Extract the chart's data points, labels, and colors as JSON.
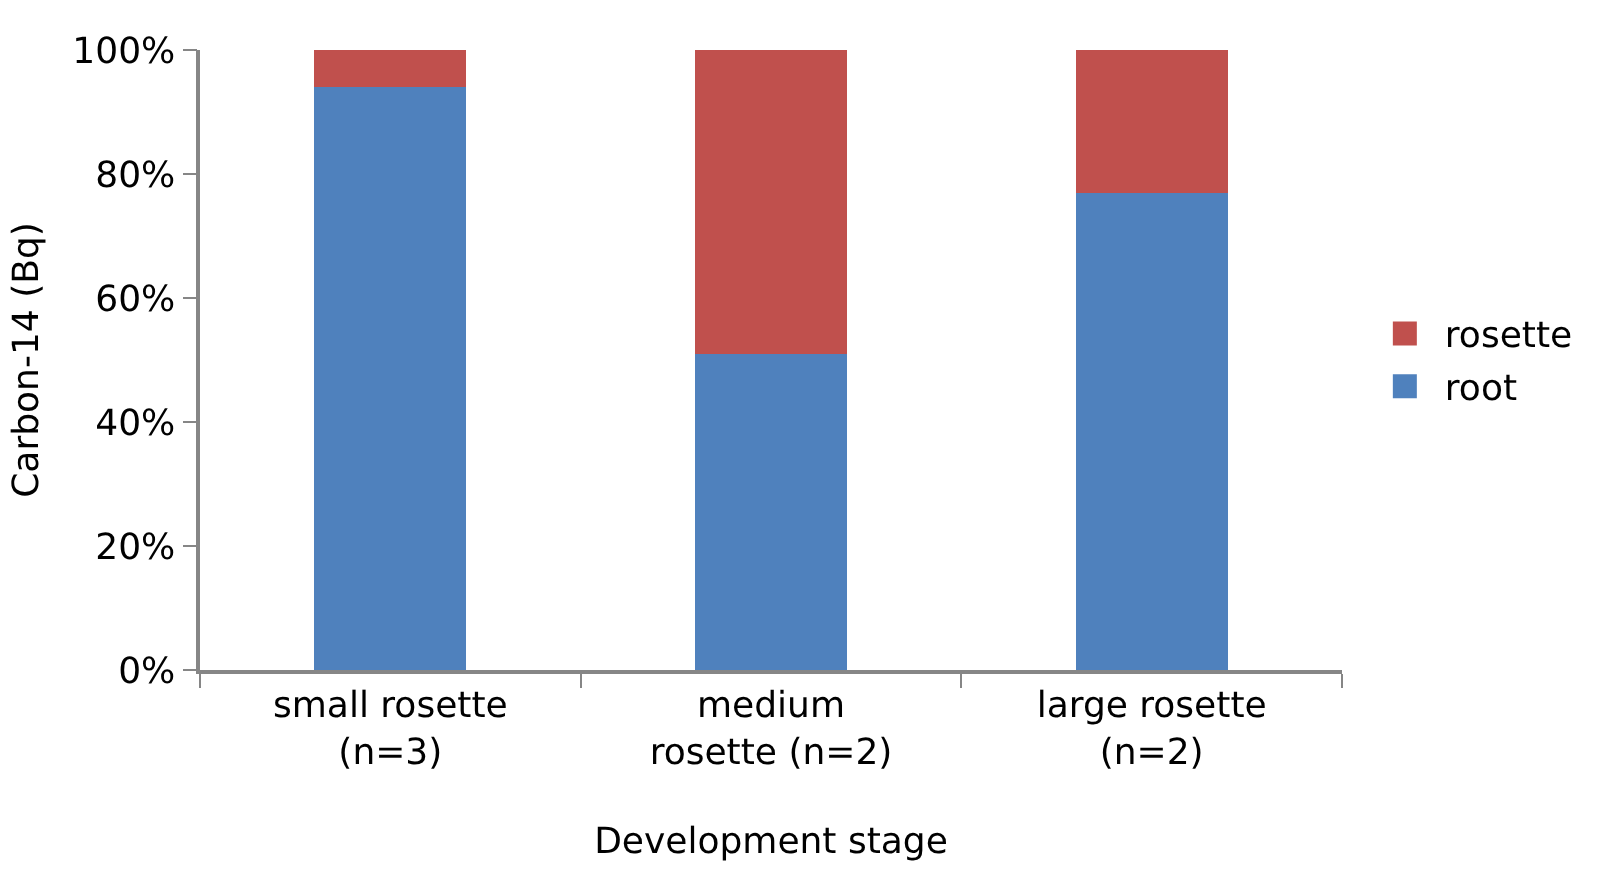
{
  "chart_data": {
    "type": "bar",
    "stacked": true,
    "xlabel": "Development stage",
    "ylabel": "Carbon-14 (Bq)",
    "categories": [
      "small rosette\n(n=3)",
      "medium\nrosette (n=2)",
      "large rosette\n(n=2)"
    ],
    "series": [
      {
        "name": "root",
        "color": "#4f81bd",
        "values": [
          94,
          51,
          77
        ]
      },
      {
        "name": "rosette",
        "color": "#c0504d",
        "values": [
          6,
          49,
          23
        ]
      }
    ],
    "ylim": [
      0,
      100
    ],
    "yticks": [
      {
        "value": 0,
        "label": "0%"
      },
      {
        "value": 20,
        "label": "20%"
      },
      {
        "value": 40,
        "label": "40%"
      },
      {
        "value": 60,
        "label": "60%"
      },
      {
        "value": 80,
        "label": "80%"
      },
      {
        "value": 100,
        "label": "100%"
      }
    ],
    "grid": false,
    "legend": "right"
  }
}
